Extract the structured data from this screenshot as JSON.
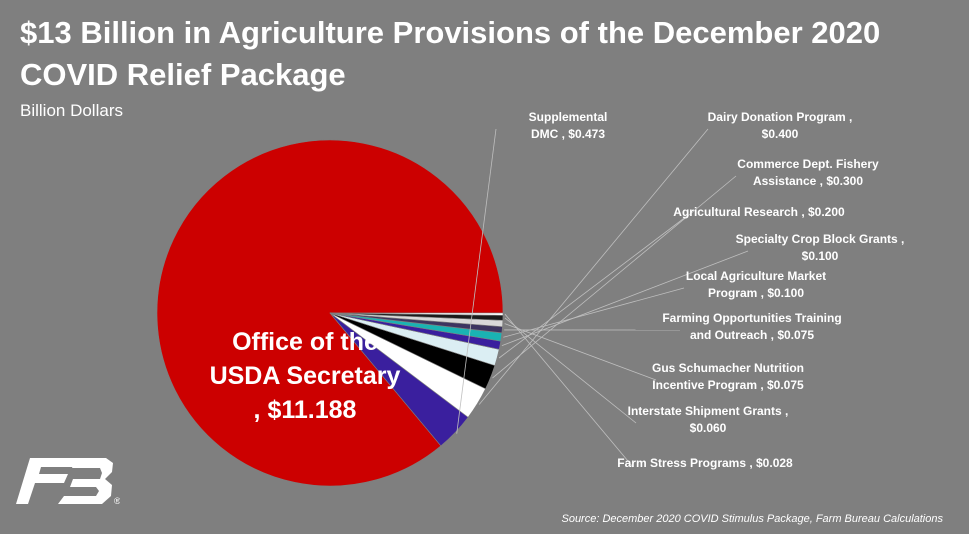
{
  "title": "$13 Billion in Agriculture Provisions of the December 2020 COVID Relief Package",
  "subtitle": "Billion Dollars",
  "source": "Source: December 2020 COVID Stimulus Package, Farm Bureau Calculations",
  "logo": {
    "name": "farm-bureau-logo",
    "mark": "FB",
    "registered": "®"
  },
  "chart_data": {
    "type": "pie",
    "title": "$13 Billion in Agriculture Provisions of the December 2020 COVID Relief Package",
    "unit": "Billion Dollars",
    "slices": [
      {
        "label": "Office of the USDA Secretary",
        "value": 11.188,
        "value_text": "$11.188",
        "color": "#cc0000",
        "label_lines": [
          "Office of the",
          "USDA Secretary",
          ", $11.188"
        ]
      },
      {
        "label": "Supplemental DMC",
        "value": 0.473,
        "value_text": "$0.473",
        "color": "#3a1f9e",
        "label_lines": [
          "Supplemental",
          "DMC , $0.473"
        ]
      },
      {
        "label": "Dairy Donation Program",
        "value": 0.4,
        "value_text": "$0.400",
        "color": "#ffffff",
        "label_lines": [
          "Dairy Donation Program ,",
          "$0.400"
        ]
      },
      {
        "label": "Commerce Dept. Fishery Assistance",
        "value": 0.3,
        "value_text": "$0.300",
        "color": "#000000",
        "label_lines": [
          "Commerce Dept. Fishery",
          "Assistance , $0.300"
        ]
      },
      {
        "label": "Agricultural Research",
        "value": 0.2,
        "value_text": "$0.200",
        "color": "#dbeef3",
        "label_lines": [
          "Agricultural Research , $0.200"
        ]
      },
      {
        "label": "Specialty Crop Block Grants",
        "value": 0.1,
        "value_text": "$0.100",
        "color": "#3a1f9e",
        "label_lines": [
          "Specialty Crop Block Grants ,",
          "$0.100"
        ]
      },
      {
        "label": "Local Agriculture Market Program",
        "value": 0.1,
        "value_text": "$0.100",
        "color": "#1ab3b3",
        "label_lines": [
          "Local Agriculture Market",
          "Program , $0.100"
        ]
      },
      {
        "label": "Farming Opportunities Training and Outreach",
        "value": 0.075,
        "value_text": "$0.075",
        "color": "#3d3560",
        "label_lines": [
          "Farming Opportunities Training",
          "and Outreach , $0.075"
        ]
      },
      {
        "label": "Gus Schumacher Nutrition Incentive Program",
        "value": 0.075,
        "value_text": "$0.075",
        "color": "#d9d9d9",
        "label_lines": [
          "Gus Schumacher Nutrition",
          "Incentive Program , $0.075"
        ]
      },
      {
        "label": "Interstate Shipment Grants",
        "value": 0.06,
        "value_text": "$0.060",
        "color": "#1a1a1a",
        "label_lines": [
          "Interstate Shipment Grants ,",
          "$0.060"
        ]
      },
      {
        "label": "Farm Stress Programs",
        "value": 0.028,
        "value_text": "$0.028",
        "color": "#ffffff",
        "label_lines": [
          "Farm Stress Programs , $0.028"
        ]
      }
    ],
    "start_angle_deg": 0,
    "direction": "counterclockwise",
    "legend": "none",
    "data_labels": "outside with leader lines; largest slice labeled inside"
  }
}
